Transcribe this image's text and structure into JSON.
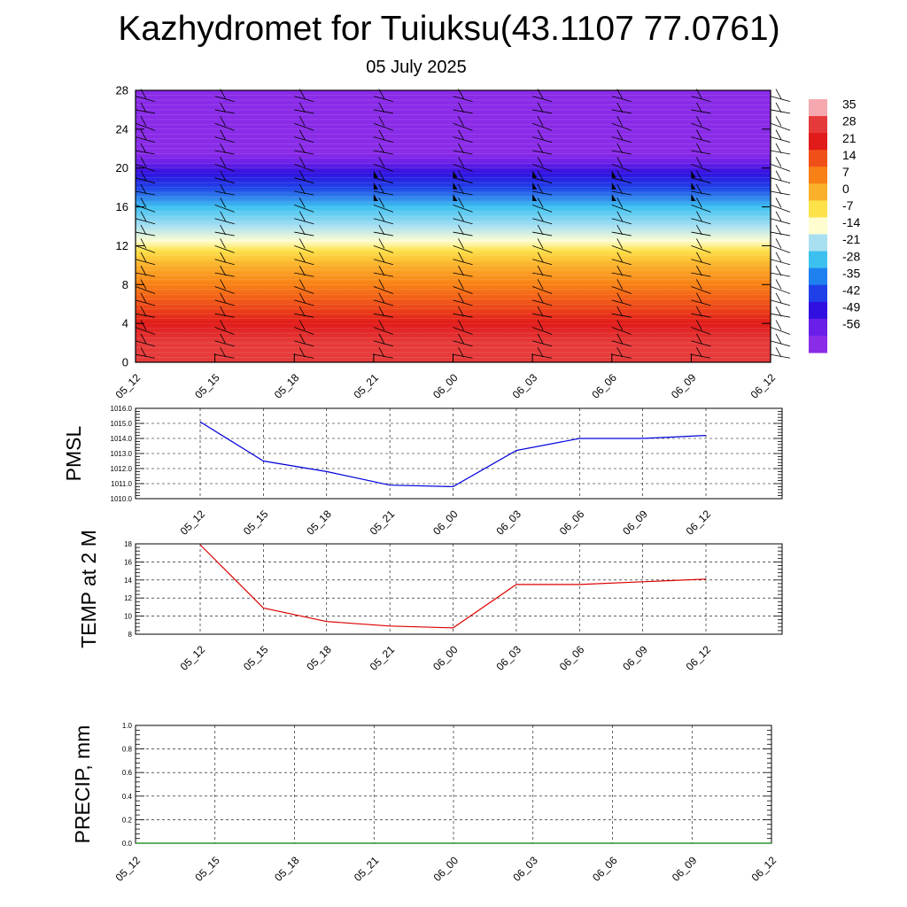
{
  "header": {
    "title": "Kazhydromet for Tuiuksu(43.1107 77.0761)",
    "subtitle": "05 July 2025"
  },
  "chart_data": [
    {
      "type": "heatmap",
      "description_role": "vertical cross-section: temperature shading with wind barbs",
      "x": [
        "05_12",
        "05_15",
        "05_18",
        "05_21",
        "06_00",
        "06_03",
        "06_06",
        "06_09",
        "06_12"
      ],
      "yticks": [
        0,
        4,
        8,
        12,
        16,
        20,
        24,
        28
      ],
      "ylim": [
        0,
        28
      ],
      "colorbar_labels": [
        "35",
        "28",
        "21",
        "14",
        "7",
        "0",
        "-7",
        "-14",
        "-21",
        "-28",
        "-35",
        "-42",
        "-49",
        "-56"
      ],
      "colorbar_colors": [
        "#f5a8b0",
        "#e63a3a",
        "#e11a1a",
        "#f05018",
        "#f88014",
        "#fbb02a",
        "#fde24a",
        "#fdfdd0",
        "#a8e0f2",
        "#3cc0f0",
        "#1f80f0",
        "#1f40e8",
        "#3010e0",
        "#6a1fe8",
        "#8a2be8"
      ],
      "temperature_by_height": [
        {
          "y": 0,
          "t": 30
        },
        {
          "y": 2,
          "t": 25
        },
        {
          "y": 4,
          "t": 20
        },
        {
          "y": 6,
          "t": 13
        },
        {
          "y": 8,
          "t": 7
        },
        {
          "y": 10,
          "t": 2
        },
        {
          "y": 11.5,
          "t": -8
        },
        {
          "y": 12.5,
          "t": -14
        },
        {
          "y": 14,
          "t": -22
        },
        {
          "y": 16,
          "t": -30
        },
        {
          "y": 18,
          "t": -42
        },
        {
          "y": 19.5,
          "t": -52
        },
        {
          "y": 20.5,
          "t": -56
        },
        {
          "y": 21.5,
          "t": -60
        },
        {
          "y": 28,
          "t": -62
        }
      ],
      "barb_heights": [
        0.8,
        2.2,
        3.6,
        5.0,
        6.4,
        7.8,
        9.2,
        10.6,
        12.0,
        13.4,
        14.8,
        16.2,
        17.6,
        19.0,
        20.4,
        21.8,
        23.2,
        24.6,
        26.0,
        27.4
      ],
      "pennant_columns": [
        "05_21",
        "06_00",
        "06_03",
        "06_06",
        "06_09"
      ]
    },
    {
      "type": "line",
      "ylabel": "PMSL",
      "x": [
        "05_12",
        "05_15",
        "05_18",
        "05_21",
        "06_00",
        "06_03",
        "06_06",
        "06_09",
        "06_12"
      ],
      "series": [
        {
          "values": [
            1015.1,
            1012.5,
            1011.8,
            1010.9,
            1010.8,
            1013.2,
            1014.0,
            1014.0,
            1014.2
          ]
        }
      ],
      "ylim": [
        1010.0,
        1016.0
      ],
      "yticks": [
        "1010.0",
        "1011.0",
        "1012.0",
        "1013.0",
        "1014.0",
        "1015.0",
        "1016.0"
      ],
      "color": "#0000dd",
      "grid": true
    },
    {
      "type": "line",
      "ylabel": "TEMP at 2 M",
      "x": [
        "05_12",
        "05_15",
        "05_18",
        "05_21",
        "06_00",
        "06_03",
        "06_06",
        "06_09",
        "06_12"
      ],
      "series": [
        {
          "values": [
            17.9,
            10.9,
            9.4,
            8.9,
            8.7,
            13.5,
            13.5,
            13.8,
            14.1
          ]
        }
      ],
      "ylim": [
        8,
        18
      ],
      "yticks": [
        "8",
        "10",
        "12",
        "14",
        "16",
        "18"
      ],
      "color": "#dd0000",
      "grid": true
    },
    {
      "type": "line",
      "ylabel": "PRECIP, mm",
      "x": [
        "05_12",
        "05_15",
        "05_18",
        "05_21",
        "06_00",
        "06_03",
        "06_06",
        "06_09",
        "06_12"
      ],
      "series": [
        {
          "values": [
            0,
            0,
            0,
            0,
            0,
            0,
            0,
            0,
            0
          ]
        }
      ],
      "ylim": [
        0,
        1.0
      ],
      "yticks": [
        "0.0",
        "0.2",
        "0.4",
        "0.6",
        "0.8",
        "1.0"
      ],
      "color": "#008000",
      "grid": true
    }
  ]
}
